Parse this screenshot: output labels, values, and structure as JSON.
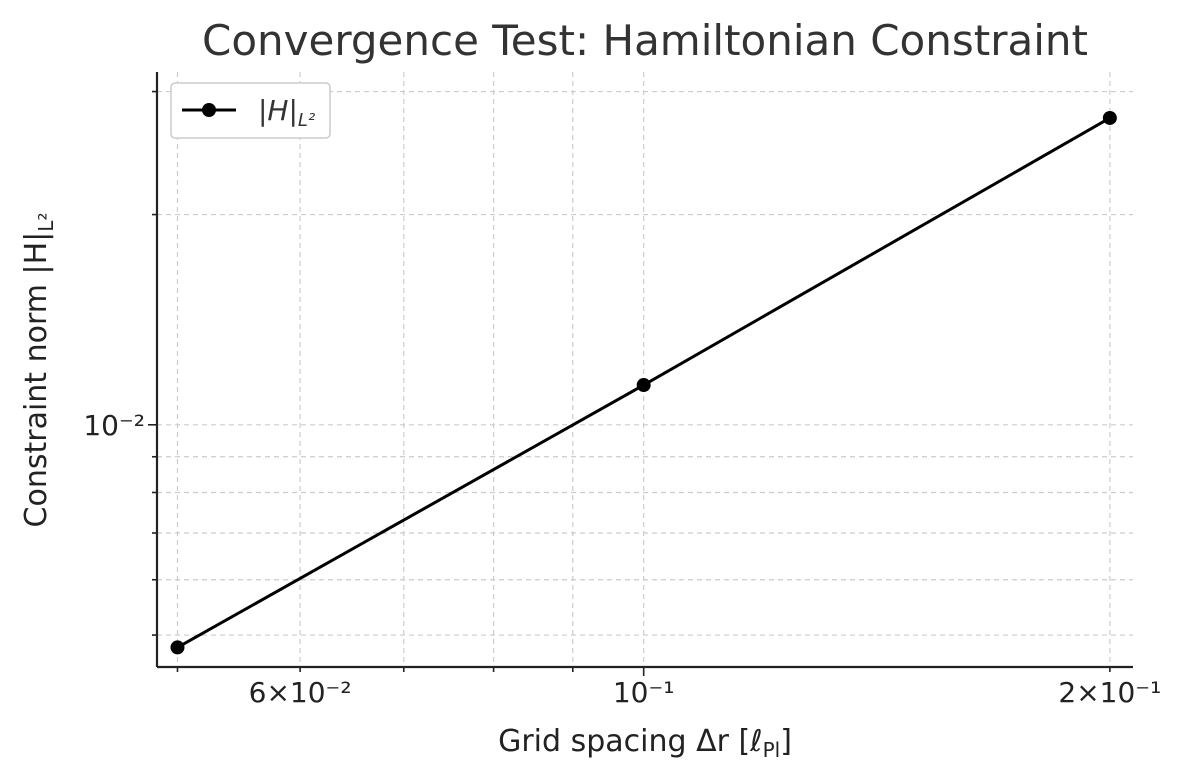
{
  "chart_data": {
    "type": "line",
    "title": "Convergence Test: Hamiltonian Constraint",
    "xlabel": "Grid spacing Δr [ℓ",
    "xlabel_sub": "Pl",
    "xlabel_end": "]",
    "ylabel": "Constraint norm |H|",
    "ylabel_sub": "L²",
    "xscale": "log",
    "yscale": "log",
    "xlim": [
      0.0485,
      0.207
    ],
    "ylim": [
      0.0045,
      0.032
    ],
    "grid": true,
    "legend_position": "top-left",
    "x_ticks": [
      {
        "value": 0.06,
        "label": "6×10⁻²"
      },
      {
        "value": 0.1,
        "label": "10⁻¹"
      },
      {
        "value": 0.2,
        "label": "2×10⁻¹"
      }
    ],
    "y_ticks": [
      {
        "value": 0.01,
        "label": "10⁻²"
      }
    ],
    "series": [
      {
        "name": "|H|",
        "name_sub": "L²",
        "color": "#000000",
        "marker": "circle",
        "x": [
          0.05,
          0.1,
          0.2
        ],
        "y": [
          0.0048,
          0.0114,
          0.0275
        ]
      }
    ]
  }
}
